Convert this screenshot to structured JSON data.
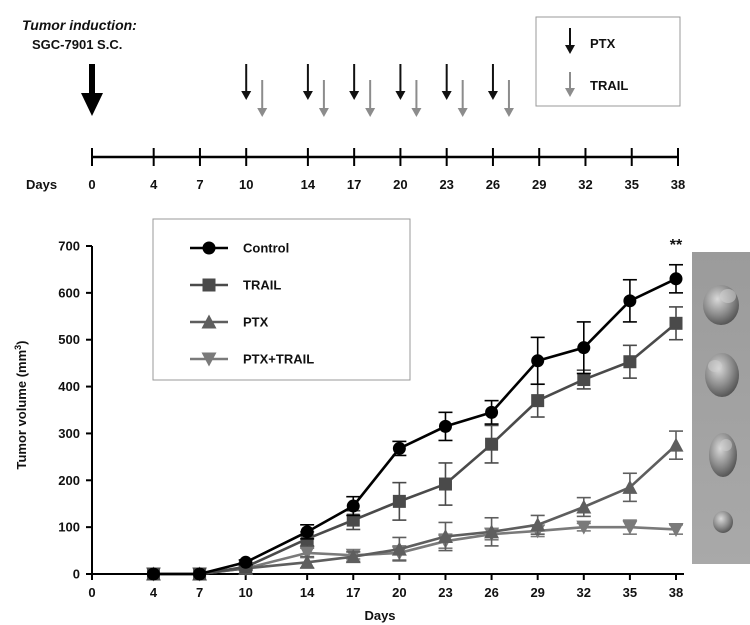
{
  "schedule": {
    "induction_title": "Tumor induction:",
    "induction_subtitle": "SGC-7901 S.C.",
    "days_label": "Days",
    "days": [
      "0",
      "4",
      "7",
      "10",
      "14",
      "17",
      "20",
      "23",
      "26",
      "29",
      "32",
      "35",
      "38"
    ],
    "day_values": [
      0,
      4,
      7,
      10,
      14,
      17,
      20,
      23,
      26,
      29,
      32,
      35,
      38
    ],
    "ptx_days": [
      10,
      14,
      17,
      20,
      23,
      26
    ],
    "trail_days": [
      10,
      14,
      17,
      20,
      23,
      26
    ],
    "legend": {
      "ptx": "PTX",
      "trail": "TRAIL"
    },
    "colors": {
      "ptx_arrow": "#111111",
      "trail_arrow": "#8c8c8c",
      "induction_arrow": "#000000"
    }
  },
  "chart_data": {
    "type": "line",
    "xlabel": "Days",
    "ylabel": "Tumor volume (mm",
    "ylabel_sup": "3",
    "ylabel_close": ")",
    "significance": "**",
    "x": [
      0,
      4,
      7,
      10,
      14,
      17,
      20,
      23,
      26,
      29,
      32,
      35,
      38
    ],
    "x_tick_labels": [
      "0",
      "4",
      "7",
      "10",
      "14",
      "17",
      "20",
      "23",
      "26",
      "29",
      "32",
      "35",
      "38"
    ],
    "ylim": [
      0,
      700
    ],
    "y_ticks": [
      0,
      100,
      200,
      300,
      400,
      500,
      600,
      700
    ],
    "y_tick_labels": [
      "0",
      "100",
      "200",
      "300",
      "400",
      "500",
      "600",
      "700"
    ],
    "legend_position": "top-left",
    "series": [
      {
        "name": "Control",
        "marker": "circle",
        "color": "#000000",
        "x": [
          4,
          7,
          10,
          14,
          17,
          20,
          23,
          26,
          29,
          32,
          35,
          38
        ],
        "values": [
          0,
          0,
          25,
          90,
          145,
          268,
          315,
          345,
          455,
          483,
          583,
          630
        ],
        "errors": [
          0,
          0,
          5,
          15,
          20,
          15,
          30,
          25,
          50,
          55,
          45,
          30
        ]
      },
      {
        "name": "TRAIL",
        "marker": "square",
        "color": "#4a4a4a",
        "x": [
          4,
          7,
          10,
          14,
          17,
          20,
          23,
          26,
          29,
          32,
          35,
          38
        ],
        "values": [
          0,
          0,
          15,
          75,
          115,
          155,
          192,
          277,
          370,
          415,
          453,
          535
        ],
        "errors": [
          0,
          0,
          4,
          15,
          20,
          40,
          45,
          40,
          35,
          20,
          35,
          35
        ]
      },
      {
        "name": "PTX",
        "marker": "triangle-up",
        "color": "#5e5e5e",
        "x": [
          4,
          7,
          10,
          14,
          17,
          20,
          23,
          26,
          29,
          32,
          35,
          38
        ],
        "values": [
          0,
          0,
          12,
          25,
          37,
          53,
          80,
          90,
          105,
          143,
          185,
          275
        ],
        "errors": [
          0,
          0,
          4,
          12,
          10,
          25,
          30,
          30,
          20,
          20,
          30,
          30
        ]
      },
      {
        "name": "PTX+TRAIL",
        "marker": "triangle-down",
        "color": "#7a7a7a",
        "x": [
          4,
          7,
          10,
          14,
          17,
          20,
          23,
          26,
          29,
          32,
          35,
          38
        ],
        "values": [
          0,
          0,
          12,
          45,
          40,
          45,
          70,
          85,
          92,
          100,
          100,
          95
        ],
        "errors": [
          0,
          0,
          4,
          10,
          8,
          15,
          15,
          12,
          12,
          8,
          15,
          10
        ]
      }
    ],
    "photo_tumor_count": 4
  }
}
